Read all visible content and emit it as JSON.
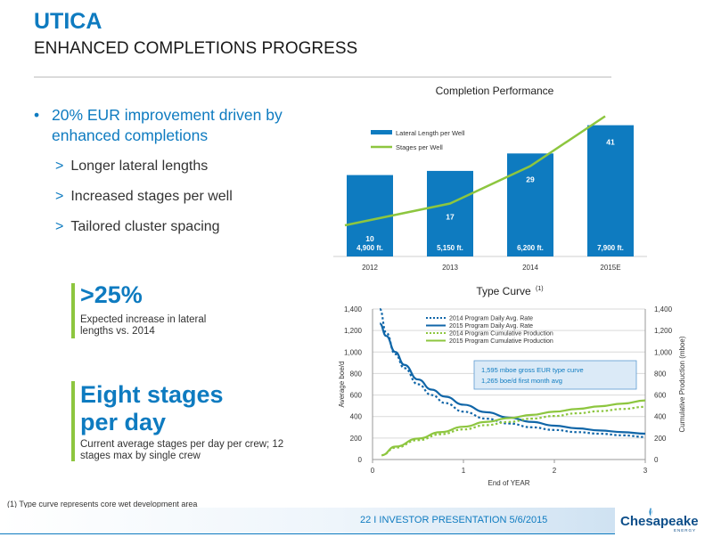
{
  "header": {
    "title": "UTICA",
    "subtitle": "ENHANCED COMPLETIONS PROGRESS"
  },
  "bullets": {
    "main": "20% EUR improvement driven by enhanced completions",
    "subs": [
      "Longer lateral lengths",
      "Increased stages per well",
      "Tailored cluster spacing"
    ],
    "sub_marker": ">"
  },
  "callouts": [
    {
      "big": ">25%",
      "small": "Expected increase in lateral lengths vs. 2014"
    },
    {
      "big": "Eight stages per day",
      "small": "Current average stages per day per crew; 12 stages max by single crew"
    }
  ],
  "footnote": "(1) Type curve represents core wet development area",
  "footer": {
    "text": "22  I  INVESTOR PRESENTATION 5/6/2015",
    "logo_text": "Chesapeake",
    "logo_sub": "ENERGY"
  },
  "colors": {
    "blue": "#0e7bc0",
    "green": "#8dc63f",
    "dark_blue": "#1066a8"
  },
  "chart_data": [
    {
      "type": "bar",
      "title": "Completion Performance",
      "categories": [
        "2012",
        "2013",
        "2014",
        "2015E"
      ],
      "series": [
        {
          "name": "Lateral Length per Well",
          "type": "bar",
          "values": [
            4900,
            5150,
            6200,
            7900
          ],
          "labels": [
            "4,900 ft.",
            "5,150 ft.",
            "6,200 ft.",
            "7,900 ft."
          ]
        },
        {
          "name": "Stages per Well",
          "type": "line",
          "values": [
            10,
            17,
            29,
            41
          ]
        }
      ],
      "legend": "top-left",
      "grid": false
    },
    {
      "type": "line",
      "title": "Type Curve",
      "title_sup": "(1)",
      "xlabel": "End of YEAR",
      "ylabel": "Average boe/d",
      "y2label": "Cumulative Production (mboe)",
      "xlim": [
        0,
        3
      ],
      "ylim": [
        0,
        1400
      ],
      "y2lim": [
        0,
        1400
      ],
      "xticks": [
        "0",
        "1",
        "2",
        "3"
      ],
      "yticks": [
        "0",
        "200",
        "400",
        "600",
        "800",
        "1,000",
        "1,200",
        "1,400"
      ],
      "annotation": [
        "1,595 mboe gross EUR type curve",
        "1,265 boe/d first month avg"
      ],
      "grid": true,
      "legend": "top",
      "series": [
        {
          "name": "2014 Program Daily Avg. Rate",
          "style": "dotted",
          "color": "#1066a8",
          "x": [
            0.08,
            0.15,
            0.25,
            0.35,
            0.5,
            0.65,
            0.8,
            1.0,
            1.25,
            1.5,
            1.75,
            2.0,
            2.25,
            2.5,
            2.75,
            3.0
          ],
          "y": [
            1400,
            1180,
            980,
            850,
            700,
            600,
            525,
            445,
            380,
            335,
            300,
            275,
            255,
            240,
            225,
            210
          ]
        },
        {
          "name": "2015 Program Daily Avg. Rate",
          "style": "solid",
          "color": "#1066a8",
          "x": [
            0.08,
            0.15,
            0.25,
            0.35,
            0.5,
            0.65,
            0.8,
            1.0,
            1.25,
            1.5,
            1.75,
            2.0,
            2.25,
            2.5,
            2.75,
            3.0
          ],
          "y": [
            1265,
            1150,
            1000,
            880,
            745,
            650,
            585,
            510,
            440,
            390,
            350,
            315,
            290,
            270,
            255,
            240
          ]
        },
        {
          "name": "2014 Program Cumulative Production",
          "style": "dotted",
          "color": "#8dc63f",
          "x": [
            0.1,
            0.25,
            0.5,
            0.75,
            1.0,
            1.25,
            1.5,
            1.75,
            2.0,
            2.25,
            2.5,
            2.75,
            3.0
          ],
          "y": [
            40,
            110,
            180,
            235,
            280,
            320,
            350,
            380,
            405,
            430,
            450,
            470,
            490
          ]
        },
        {
          "name": "2015 Program Cumulative Production",
          "style": "solid",
          "color": "#8dc63f",
          "x": [
            0.1,
            0.25,
            0.5,
            0.75,
            1.0,
            1.25,
            1.5,
            1.75,
            2.0,
            2.25,
            2.5,
            2.75,
            3.0
          ],
          "y": [
            40,
            120,
            195,
            255,
            305,
            350,
            385,
            415,
            445,
            470,
            495,
            520,
            550
          ]
        }
      ]
    }
  ]
}
